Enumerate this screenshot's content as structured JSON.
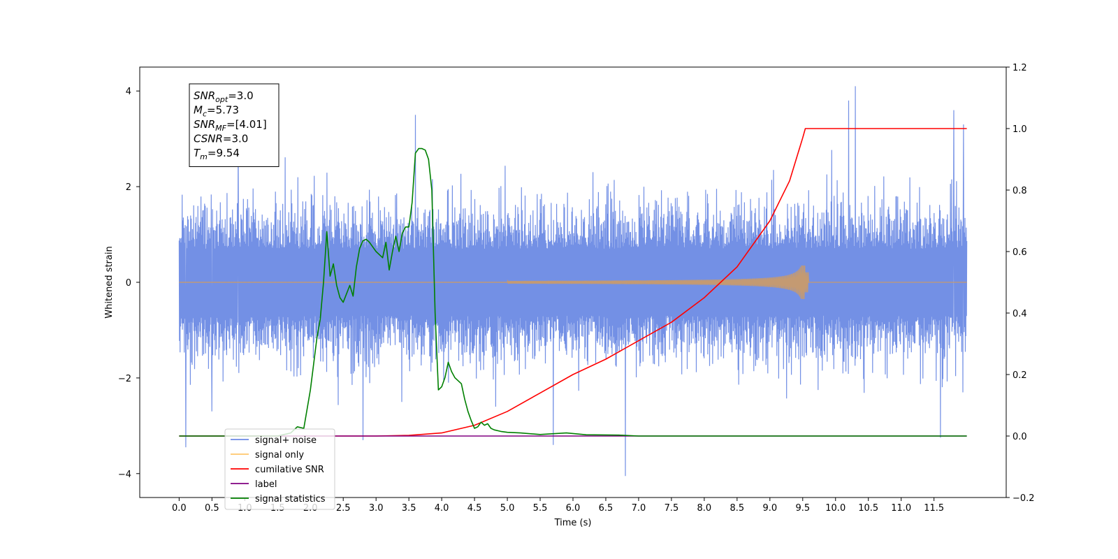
{
  "chart_data": {
    "type": "line",
    "xlabel": "Time (s)",
    "ylabel": "Whitened strain",
    "xlim": [
      -0.6,
      12.6
    ],
    "ylim": [
      -4.5,
      4.5
    ],
    "y2lim": [
      -0.2,
      1.2
    ],
    "x_ticks": [
      "0.0",
      "0.5",
      "1.0",
      "1.5",
      "2.0",
      "2.5",
      "3.0",
      "3.5",
      "4.0",
      "4.5",
      "5.0",
      "5.5",
      "6.0",
      "6.5",
      "7.0",
      "7.5",
      "8.0",
      "8.5",
      "9.0",
      "9.5",
      "10.0",
      "10.5",
      "11.0",
      "11.5"
    ],
    "y_ticks": [
      "4",
      "2",
      "0",
      "−2",
      "−4"
    ],
    "y2_ticks": [
      "1.2",
      "1.0",
      "0.8",
      "0.6",
      "0.4",
      "0.2",
      "0.0",
      "−0.2"
    ],
    "annotation": {
      "lines": [
        {
          "base": "SNR",
          "sub": "opt",
          "rest": "=3.0"
        },
        {
          "base": "M",
          "sub": "c",
          "rest": "=5.73"
        },
        {
          "base": "SNR",
          "sub": "MF",
          "rest": "=[4.01]"
        },
        {
          "base": "CSNR",
          "sub": "",
          "rest": "=3.0"
        },
        {
          "base": "T",
          "sub": "m",
          "rest": "=9.54"
        }
      ]
    },
    "legend": {
      "placement": "lower-left",
      "entries": [
        {
          "label": "signal+ noise",
          "color": "#6c8ae4"
        },
        {
          "label": "signal only",
          "color": "#ffc66b"
        },
        {
          "label": "cumilative SNR",
          "color": "#ff0000"
        },
        {
          "label": "label",
          "color": "#800080"
        },
        {
          "label": "signal statistics",
          "color": "#008000"
        }
      ]
    },
    "series": [
      {
        "name": "signal+ noise",
        "color": "#6c8ae4",
        "axis": "left",
        "kind": "noise",
        "x_range": [
          0.0,
          12.0
        ],
        "typical_amplitude": [
          -1.7,
          1.9
        ],
        "spikes": [
          [
            0.1,
            -3.45
          ],
          [
            0.5,
            -2.7
          ],
          [
            0.9,
            2.9
          ],
          [
            2.8,
            -3.3
          ],
          [
            3.6,
            3.5
          ],
          [
            5.7,
            -3.4
          ],
          [
            6.8,
            -4.05
          ],
          [
            10.2,
            3.8
          ],
          [
            10.3,
            4.1
          ],
          [
            11.6,
            -3.25
          ],
          [
            11.8,
            3.6
          ],
          [
            11.95,
            3.3
          ]
        ]
      },
      {
        "name": "signal only",
        "color": "#c49a72",
        "axis": "left",
        "kind": "chirp",
        "x_range": [
          0.0,
          12.0
        ],
        "merger_time": 9.54,
        "peak_amplitude": 0.35
      },
      {
        "name": "cumilative SNR",
        "color": "#ff0000",
        "axis": "right",
        "x": [
          0.0,
          2.0,
          3.0,
          3.5,
          4.0,
          4.5,
          5.0,
          5.5,
          6.0,
          6.5,
          7.0,
          7.5,
          8.0,
          8.5,
          9.0,
          9.3,
          9.5,
          9.54,
          10.0,
          11.0,
          12.0
        ],
        "y": [
          0.0,
          0.0,
          0.0,
          0.002,
          0.01,
          0.035,
          0.08,
          0.14,
          0.2,
          0.25,
          0.31,
          0.37,
          0.45,
          0.55,
          0.7,
          0.83,
          0.97,
          1.0,
          1.0,
          1.0,
          1.0
        ]
      },
      {
        "name": "label",
        "color": "#800080",
        "axis": "right",
        "x": [
          0.0,
          12.0
        ],
        "y": [
          0.0,
          0.0
        ]
      },
      {
        "name": "signal statistics",
        "color": "#008000",
        "axis": "right",
        "x": [
          0.0,
          1.5,
          1.6,
          1.7,
          1.8,
          1.9,
          2.0,
          2.1,
          2.15,
          2.2,
          2.25,
          2.3,
          2.35,
          2.4,
          2.45,
          2.5,
          2.6,
          2.65,
          2.7,
          2.75,
          2.8,
          2.85,
          2.9,
          3.0,
          3.1,
          3.15,
          3.2,
          3.25,
          3.3,
          3.35,
          3.4,
          3.45,
          3.5,
          3.55,
          3.6,
          3.65,
          3.7,
          3.75,
          3.8,
          3.85,
          3.9,
          3.95,
          4.0,
          4.05,
          4.1,
          4.15,
          4.2,
          4.25,
          4.3,
          4.35,
          4.4,
          4.45,
          4.5,
          4.55,
          4.6,
          4.65,
          4.7,
          4.75,
          4.8,
          4.9,
          5.0,
          5.2,
          5.5,
          5.9,
          6.2,
          6.7,
          7.0,
          10.0,
          12.0
        ],
        "y": [
          0.0,
          0.0,
          0.005,
          0.01,
          0.03,
          0.025,
          0.15,
          0.32,
          0.38,
          0.5,
          0.665,
          0.52,
          0.56,
          0.49,
          0.45,
          0.435,
          0.49,
          0.455,
          0.55,
          0.61,
          0.635,
          0.64,
          0.63,
          0.6,
          0.58,
          0.63,
          0.54,
          0.6,
          0.65,
          0.6,
          0.66,
          0.68,
          0.68,
          0.76,
          0.92,
          0.935,
          0.935,
          0.93,
          0.9,
          0.8,
          0.4,
          0.15,
          0.16,
          0.19,
          0.24,
          0.21,
          0.19,
          0.18,
          0.17,
          0.12,
          0.08,
          0.05,
          0.025,
          0.03,
          0.045,
          0.035,
          0.04,
          0.025,
          0.02,
          0.015,
          0.012,
          0.01,
          0.005,
          0.01,
          0.004,
          0.003,
          0.0,
          0.0,
          0.0
        ]
      }
    ]
  }
}
